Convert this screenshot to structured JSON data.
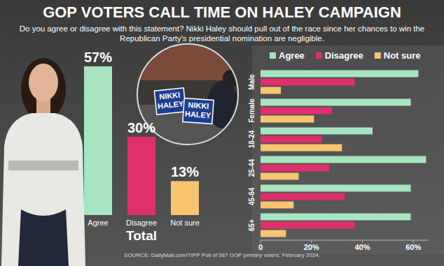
{
  "title": "GOP VOTERS CALL TIME ON HALEY CAMPAIGN",
  "subtitle": "Do you agree or disagree with this statement? Nikki Haley should pull out of the race since her chances to win the Republican Party's presidential nomination are negligible.",
  "source": "SOURCE: DailyMail.com/TIPP Poll of 587 GOP primary voters, February 2024.",
  "signs": [
    "NIKKI HALEY",
    "NIKKI HALEY"
  ],
  "chart_data": [
    {
      "type": "bar",
      "x_label": "Total",
      "categories": [
        "Agree",
        "Disagree",
        "Not sure"
      ],
      "values": [
        57,
        30,
        13
      ],
      "value_labels": [
        "57%",
        "30%",
        "13%"
      ],
      "colors": [
        "#a8e4bf",
        "#e0306c",
        "#f7c56f"
      ],
      "ylim": [
        0,
        57
      ],
      "data_labels": true,
      "tick_labels": "x"
    },
    {
      "type": "bar",
      "orientation": "horizontal",
      "legend": "top",
      "grid": false,
      "categories": [
        "Male",
        "Female",
        "18-24",
        "25-44",
        "45-64",
        "65+"
      ],
      "series": [
        {
          "name": "Agree",
          "color": "#a8e4bf",
          "values": [
            62,
            59,
            44,
            65,
            59,
            59
          ]
        },
        {
          "name": "Disagree",
          "color": "#e0306c",
          "values": [
            37,
            28,
            24,
            27,
            33,
            37
          ]
        },
        {
          "name": "Not sure",
          "color": "#f7c56f",
          "values": [
            8,
            21,
            32,
            15,
            13,
            10
          ]
        }
      ],
      "xlim": [
        0,
        66
      ],
      "xticks": [
        0,
        {
          "value": 20,
          "label": "20%"
        },
        {
          "value": 40,
          "label": "40%"
        },
        {
          "value": 60,
          "label": "60%"
        }
      ]
    }
  ]
}
